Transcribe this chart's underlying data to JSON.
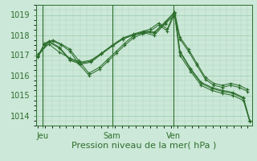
{
  "bg_color": "#cce8d8",
  "grid_color": "#99ccaa",
  "line_color": "#2d6e2d",
  "xlabel": "Pression niveau de la mer( hPa )",
  "xtick_labels": [
    "Jeu",
    "Sam",
    "Ven"
  ],
  "xtick_positions": [
    0.02,
    0.35,
    0.64
  ],
  "vline_positions": [
    0.02,
    0.35,
    0.64
  ],
  "ylim": [
    1013.5,
    1019.5
  ],
  "yticks": [
    1014,
    1015,
    1016,
    1017,
    1018,
    1019
  ],
  "xlabel_fontsize": 8,
  "tick_fontsize": 7,
  "series": [
    {
      "x": [
        0.0,
        0.03,
        0.07,
        0.11,
        0.15,
        0.19,
        0.24,
        0.29,
        0.33,
        0.37,
        0.41,
        0.45,
        0.49,
        0.53,
        0.57,
        0.61,
        0.645,
        0.67,
        0.71,
        0.75,
        0.79,
        0.83,
        0.87,
        0.91,
        0.95,
        0.99
      ],
      "y": [
        1017.0,
        1017.55,
        1017.7,
        1017.5,
        1017.2,
        1016.6,
        1016.0,
        1016.3,
        1016.7,
        1017.1,
        1017.5,
        1017.85,
        1018.05,
        1018.2,
        1018.5,
        1018.2,
        1019.05,
        1017.8,
        1017.2,
        1016.5,
        1015.8,
        1015.5,
        1015.4,
        1015.5,
        1015.4,
        1015.2
      ]
    },
    {
      "x": [
        0.0,
        0.03,
        0.07,
        0.11,
        0.15,
        0.19,
        0.24,
        0.29,
        0.33,
        0.37,
        0.41,
        0.45,
        0.49,
        0.53,
        0.57,
        0.61,
        0.645,
        0.67,
        0.71,
        0.75,
        0.79,
        0.83,
        0.87,
        0.91,
        0.95,
        0.99
      ],
      "y": [
        1016.9,
        1017.6,
        1017.75,
        1017.55,
        1017.3,
        1016.75,
        1016.1,
        1016.4,
        1016.8,
        1017.2,
        1017.6,
        1017.95,
        1018.15,
        1018.3,
        1018.6,
        1018.3,
        1019.15,
        1017.9,
        1017.3,
        1016.6,
        1015.9,
        1015.6,
        1015.5,
        1015.6,
        1015.5,
        1015.3
      ]
    },
    {
      "x": [
        0.0,
        0.05,
        0.1,
        0.15,
        0.2,
        0.25,
        0.3,
        0.35,
        0.4,
        0.45,
        0.5,
        0.55,
        0.6,
        0.645,
        0.67,
        0.72,
        0.77,
        0.82,
        0.87,
        0.92,
        0.97,
        1.0
      ],
      "y": [
        1017.0,
        1017.65,
        1017.35,
        1016.75,
        1016.55,
        1016.65,
        1017.05,
        1017.45,
        1017.8,
        1018.0,
        1018.15,
        1018.1,
        1018.6,
        1019.1,
        1017.15,
        1016.3,
        1015.6,
        1015.35,
        1015.2,
        1015.1,
        1014.85,
        1013.75
      ]
    },
    {
      "x": [
        0.0,
        0.05,
        0.1,
        0.15,
        0.2,
        0.25,
        0.3,
        0.35,
        0.4,
        0.45,
        0.5,
        0.55,
        0.6,
        0.645,
        0.67,
        0.72,
        0.77,
        0.82,
        0.87,
        0.92,
        0.97,
        1.0
      ],
      "y": [
        1016.95,
        1017.7,
        1017.4,
        1016.8,
        1016.6,
        1016.7,
        1017.1,
        1017.5,
        1017.85,
        1018.05,
        1018.2,
        1018.15,
        1018.65,
        1019.15,
        1017.2,
        1016.35,
        1015.65,
        1015.4,
        1015.25,
        1015.15,
        1014.9,
        1013.75
      ]
    },
    {
      "x": [
        0.0,
        0.05,
        0.1,
        0.15,
        0.2,
        0.25,
        0.3,
        0.35,
        0.4,
        0.45,
        0.5,
        0.55,
        0.6,
        0.645,
        0.67,
        0.72,
        0.77,
        0.82,
        0.87,
        0.92,
        0.97,
        1.0
      ],
      "y": [
        1017.05,
        1017.55,
        1017.15,
        1016.85,
        1016.65,
        1016.75,
        1017.1,
        1017.45,
        1017.8,
        1018.0,
        1018.1,
        1018.0,
        1018.55,
        1019.0,
        1017.0,
        1016.2,
        1015.5,
        1015.25,
        1015.1,
        1015.0,
        1014.75,
        1013.7
      ]
    }
  ]
}
